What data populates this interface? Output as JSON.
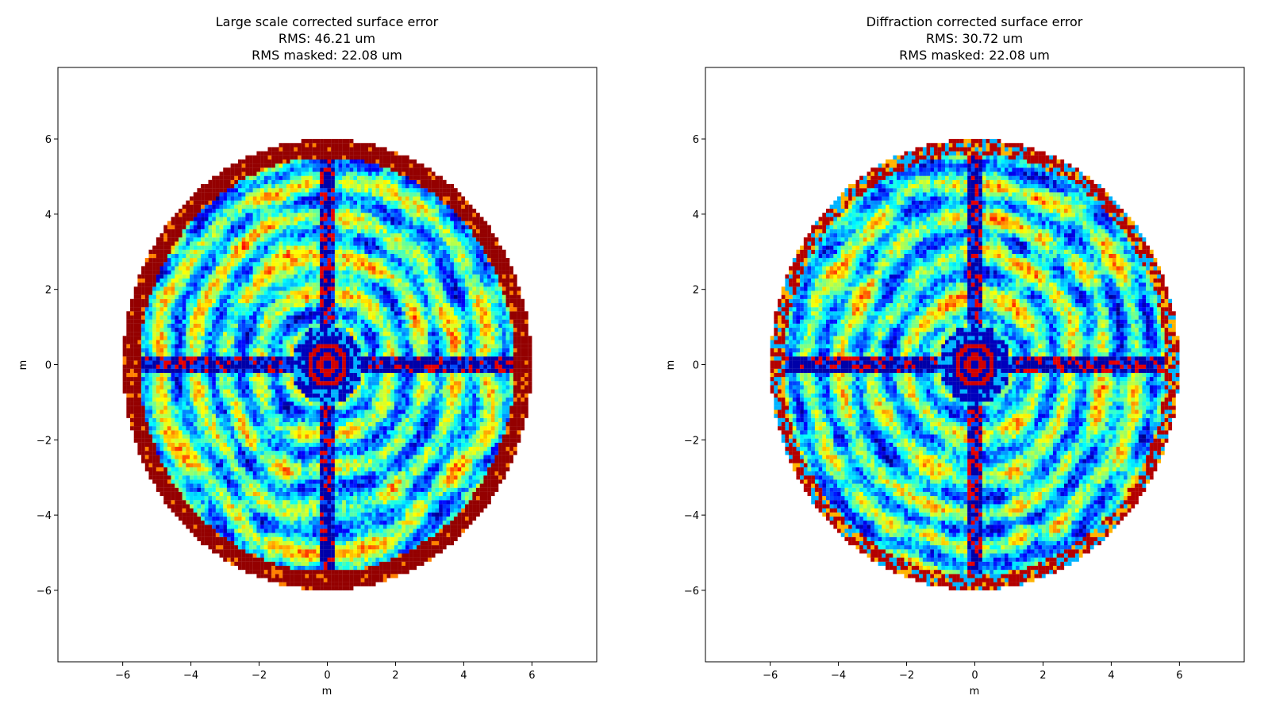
{
  "figure": {
    "panels": [
      {
        "title_lines": [
          "Large scale corrected surface error",
          "RMS: 46.21 um",
          "RMS masked: 22.08 um"
        ],
        "xlabel": "m",
        "ylabel": "m"
      },
      {
        "title_lines": [
          "Diffraction corrected surface error",
          "RMS: 30.72 um",
          "RMS masked: 22.08 um"
        ],
        "xlabel": "m",
        "ylabel": "m"
      }
    ]
  },
  "chart_data": [
    {
      "type": "heatmap",
      "title": "Large scale corrected surface error\nRMS: 46.21 um\nRMS masked: 22.08 um",
      "xlabel": "m",
      "ylabel": "m",
      "xlim": [
        -7.9,
        7.9
      ],
      "ylim": [
        -7.9,
        7.9
      ],
      "xticks": [
        -6,
        -4,
        -2,
        0,
        2,
        4,
        6
      ],
      "yticks": [
        -6,
        -4,
        -2,
        0,
        2,
        4,
        6
      ],
      "xtick_labels": [
        "−6",
        "−4",
        "−2",
        "0",
        "2",
        "4",
        "6"
      ],
      "ytick_labels": [
        "−6",
        "−4",
        "−2",
        "0",
        "2",
        "4",
        "6"
      ],
      "colormap": "jet",
      "grid": false,
      "legend": "none",
      "aperture_radius": 6.0,
      "rms_um": 46.21,
      "rms_masked_um": 22.08,
      "features": {
        "edge_ring": {
          "inner_radius": 5.5,
          "outer_radius": 6.0,
          "level": "high"
        },
        "cross_struts": {
          "half_width": 0.25,
          "extent": 6.0,
          "level": "mixed-low"
        },
        "center_hub": {
          "radius": 0.7,
          "level": "mixed"
        },
        "concentric_rings": true
      }
    },
    {
      "type": "heatmap",
      "title": "Diffraction corrected surface error\nRMS: 30.72 um\nRMS masked: 22.08 um",
      "xlabel": "m",
      "ylabel": "m",
      "xlim": [
        -7.9,
        7.9
      ],
      "ylim": [
        -7.9,
        7.9
      ],
      "xticks": [
        -6,
        -4,
        -2,
        0,
        2,
        4,
        6
      ],
      "yticks": [
        -6,
        -4,
        -2,
        0,
        2,
        4,
        6
      ],
      "xtick_labels": [
        "−6",
        "−4",
        "−2",
        "0",
        "2",
        "4",
        "6"
      ],
      "ytick_labels": [
        "−6",
        "−4",
        "−2",
        "0",
        "2",
        "4",
        "6"
      ],
      "colormap": "jet",
      "grid": false,
      "legend": "none",
      "aperture_radius": 6.0,
      "rms_um": 30.72,
      "rms_masked_um": 22.08,
      "features": {
        "edge_ring": {
          "inner_radius": 5.6,
          "outer_radius": 6.0,
          "level": "mixed-high"
        },
        "cross_struts": {
          "half_width": 0.25,
          "extent": 6.0,
          "level": "mixed-low"
        },
        "center_hub": {
          "radius": 0.7,
          "level": "mixed"
        },
        "concentric_rings": true
      }
    }
  ]
}
